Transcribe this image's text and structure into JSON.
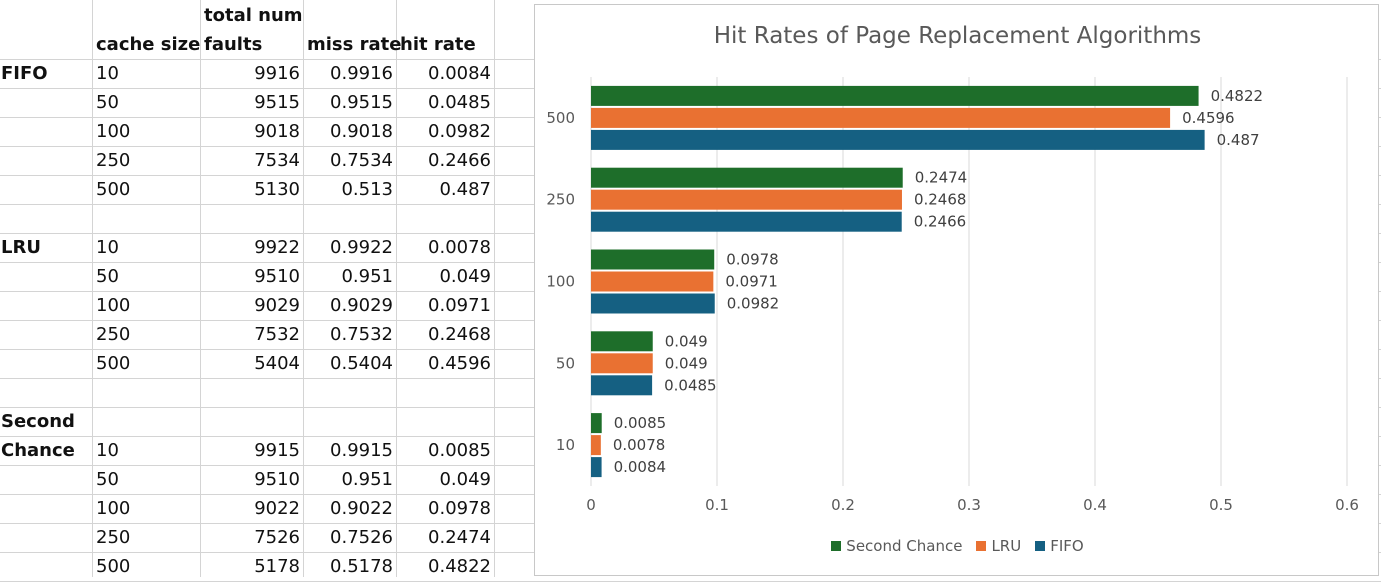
{
  "sheet": {
    "headers": {
      "cache_size": "cache size",
      "total_num_faults_1": "total num",
      "total_num_faults_2": "faults",
      "miss_rate": "miss rate",
      "hit_rate": "hit rate"
    },
    "groups": [
      {
        "name_lines": [
          "FIFO"
        ],
        "rows": [
          {
            "cache_size": "10",
            "faults": "9916",
            "miss": "0.9916",
            "hit": "0.0084"
          },
          {
            "cache_size": "50",
            "faults": "9515",
            "miss": "0.9515",
            "hit": "0.0485"
          },
          {
            "cache_size": "100",
            "faults": "9018",
            "miss": "0.9018",
            "hit": "0.0982"
          },
          {
            "cache_size": "250",
            "faults": "7534",
            "miss": "0.7534",
            "hit": "0.2466"
          },
          {
            "cache_size": "500",
            "faults": "5130",
            "miss": "0.513",
            "hit": "0.487"
          }
        ]
      },
      {
        "name_lines": [
          "LRU"
        ],
        "rows": [
          {
            "cache_size": "10",
            "faults": "9922",
            "miss": "0.9922",
            "hit": "0.0078"
          },
          {
            "cache_size": "50",
            "faults": "9510",
            "miss": "0.951",
            "hit": "0.049"
          },
          {
            "cache_size": "100",
            "faults": "9029",
            "miss": "0.9029",
            "hit": "0.0971"
          },
          {
            "cache_size": "250",
            "faults": "7532",
            "miss": "0.7532",
            "hit": "0.2468"
          },
          {
            "cache_size": "500",
            "faults": "5404",
            "miss": "0.5404",
            "hit": "0.4596"
          }
        ]
      },
      {
        "name_lines": [
          "Second",
          "Chance"
        ],
        "rows": [
          {
            "cache_size": "10",
            "faults": "9915",
            "miss": "0.9915",
            "hit": "0.0085"
          },
          {
            "cache_size": "50",
            "faults": "9510",
            "miss": "0.951",
            "hit": "0.049"
          },
          {
            "cache_size": "100",
            "faults": "9022",
            "miss": "0.9022",
            "hit": "0.0978"
          },
          {
            "cache_size": "250",
            "faults": "7526",
            "miss": "0.7526",
            "hit": "0.2474"
          },
          {
            "cache_size": "500",
            "faults": "5178",
            "miss": "0.5178",
            "hit": "0.4822"
          }
        ]
      }
    ]
  },
  "chart_data": {
    "type": "bar",
    "orientation": "horizontal",
    "title": "Hit Rates of Page Replacement Algorithms",
    "categories": [
      "10",
      "50",
      "100",
      "250",
      "500"
    ],
    "series": [
      {
        "name": "Second Chance",
        "color": "#1e6e2a",
        "values": [
          0.0085,
          0.049,
          0.0978,
          0.2474,
          0.4822
        ],
        "labels": [
          "0.0085",
          "0.049",
          "0.0978",
          "0.2474",
          "0.4822"
        ]
      },
      {
        "name": "LRU",
        "color": "#e97132",
        "values": [
          0.0078,
          0.049,
          0.0971,
          0.2468,
          0.4596
        ],
        "labels": [
          "0.0078",
          "0.049",
          "0.0971",
          "0.2468",
          "0.4596"
        ]
      },
      {
        "name": "FIFO",
        "color": "#156082",
        "values": [
          0.0084,
          0.0485,
          0.0982,
          0.2466,
          0.487
        ],
        "labels": [
          "0.0084",
          "0.0485",
          "0.0982",
          "0.2466",
          "0.487"
        ]
      }
    ],
    "x_ticks": [
      "0",
      "0.1",
      "0.2",
      "0.3",
      "0.4",
      "0.5",
      "0.6"
    ],
    "xlim": [
      0,
      0.6
    ],
    "grid": true,
    "legend_position": "bottom"
  }
}
